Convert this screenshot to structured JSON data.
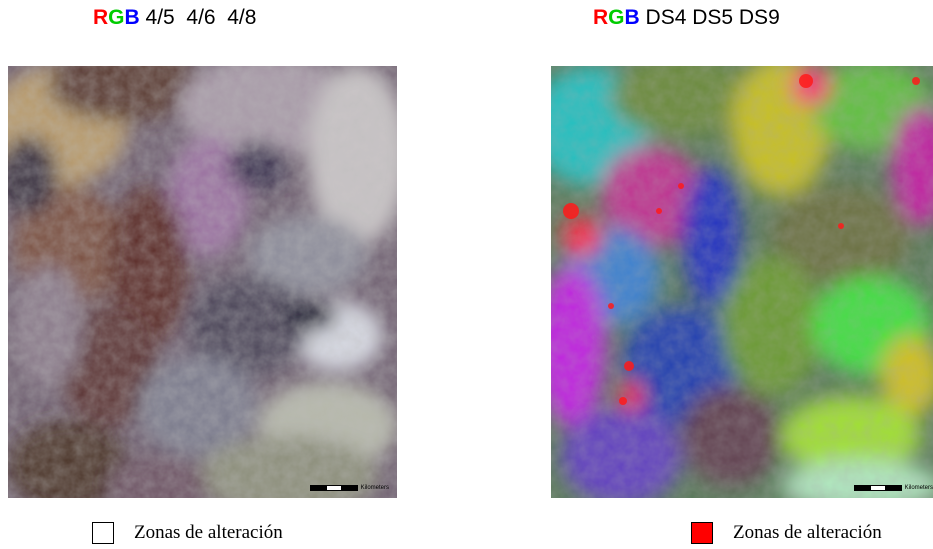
{
  "left": {
    "title": {
      "r": "R",
      "g": "G",
      "b": "B",
      "bands": " 4/5  4/6  4/8"
    },
    "legend": {
      "label": "Zonas de alteración",
      "swatch_color": "#ffffff"
    },
    "scale_label": "Kilometers"
  },
  "right": {
    "title": {
      "r": "R",
      "g": "G",
      "b": "B",
      "bands": " DS4 DS5 DS9"
    },
    "legend": {
      "label": "Zonas de alteración",
      "swatch_color": "#ff0000"
    },
    "scale_label": "Kilometers"
  },
  "colors": {
    "r": "#ff0000",
    "g": "#00cc00",
    "b": "#0000ff"
  }
}
